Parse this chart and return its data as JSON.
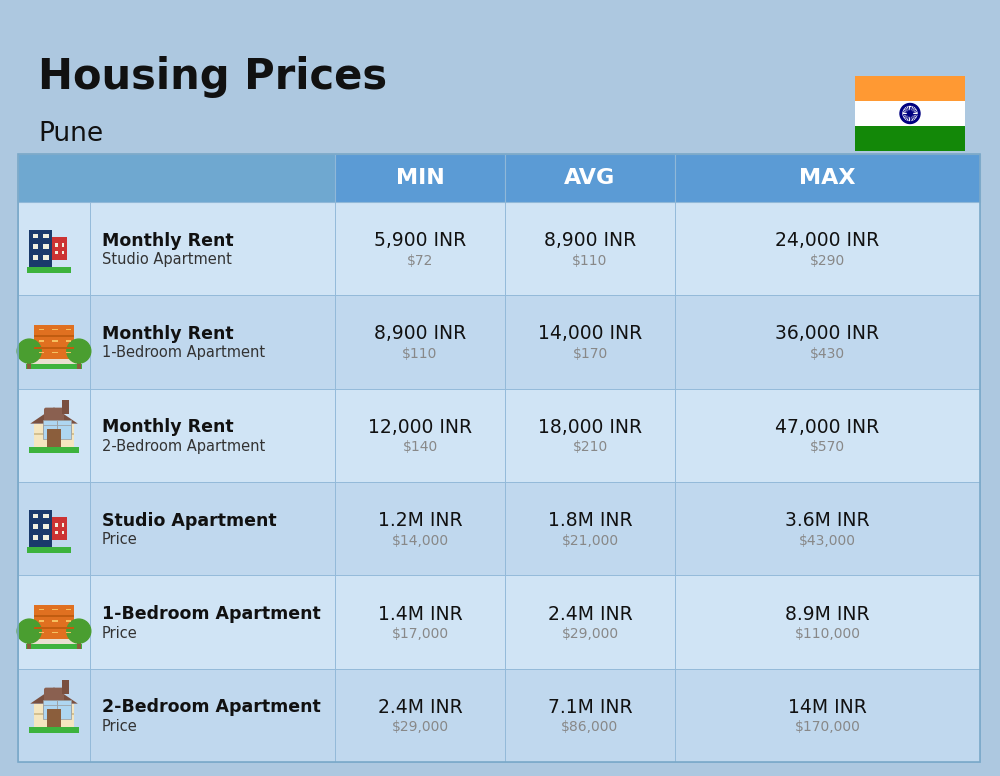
{
  "title": "Housing Prices",
  "subtitle": "Pune",
  "background_color": "#adc8e0",
  "header_bg_color": "#5b9bd5",
  "header_text_color": "#ffffff",
  "row_bg_even": "#d0e4f5",
  "row_bg_odd": "#c0d8ee",
  "cell_border_color": "#90b8d8",
  "col_headers": [
    "MIN",
    "AVG",
    "MAX"
  ],
  "rows": [
    {
      "label_bold": "Monthly Rent",
      "label_sub": "Studio Apartment",
      "min_main": "5,900 INR",
      "min_sub": "$72",
      "avg_main": "8,900 INR",
      "avg_sub": "$110",
      "max_main": "24,000 INR",
      "max_sub": "$290",
      "icon_type": "studio_blue"
    },
    {
      "label_bold": "Monthly Rent",
      "label_sub": "1-Bedroom Apartment",
      "min_main": "8,900 INR",
      "min_sub": "$110",
      "avg_main": "14,000 INR",
      "avg_sub": "$170",
      "max_main": "36,000 INR",
      "max_sub": "$430",
      "icon_type": "one_bed_orange"
    },
    {
      "label_bold": "Monthly Rent",
      "label_sub": "2-Bedroom Apartment",
      "min_main": "12,000 INR",
      "min_sub": "$140",
      "avg_main": "18,000 INR",
      "avg_sub": "$210",
      "max_main": "47,000 INR",
      "max_sub": "$570",
      "icon_type": "two_bed_tan"
    },
    {
      "label_bold": "Studio Apartment",
      "label_sub": "Price",
      "min_main": "1.2M INR",
      "min_sub": "$14,000",
      "avg_main": "1.8M INR",
      "avg_sub": "$21,000",
      "max_main": "3.6M INR",
      "max_sub": "$43,000",
      "icon_type": "studio_blue"
    },
    {
      "label_bold": "1-Bedroom Apartment",
      "label_sub": "Price",
      "min_main": "1.4M INR",
      "min_sub": "$17,000",
      "avg_main": "2.4M INR",
      "avg_sub": "$29,000",
      "max_main": "8.9M INR",
      "max_sub": "$110,000",
      "icon_type": "one_bed_orange"
    },
    {
      "label_bold": "2-Bedroom Apartment",
      "label_sub": "Price",
      "min_main": "2.4M INR",
      "min_sub": "$29,000",
      "avg_main": "7.1M INR",
      "avg_sub": "$86,000",
      "max_main": "14M INR",
      "max_sub": "$170,000",
      "icon_type": "two_bed_tan"
    }
  ]
}
